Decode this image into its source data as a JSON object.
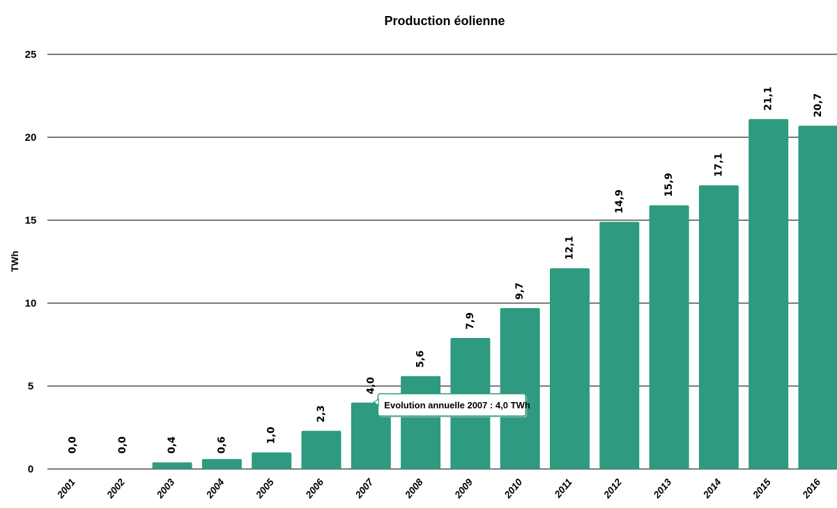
{
  "chart_data": {
    "type": "bar",
    "title": "Production éolienne",
    "xlabel": "",
    "ylabel": "TWh",
    "ylim": [
      0,
      25
    ],
    "yticks": [
      0,
      5,
      10,
      15,
      20,
      25
    ],
    "grid": true,
    "bar_color": "#2e9a80",
    "categories": [
      "2001",
      "2002",
      "2003",
      "2004",
      "2005",
      "2006",
      "2007",
      "2008",
      "2009",
      "2010",
      "2011",
      "2012",
      "2013",
      "2014",
      "2015",
      "2016"
    ],
    "values": [
      0.0,
      0.0,
      0.4,
      0.6,
      1.0,
      2.3,
      4.0,
      5.6,
      7.9,
      9.7,
      12.1,
      14.9,
      15.9,
      17.1,
      21.1,
      20.7
    ],
    "value_labels": [
      "0,0",
      "0,0",
      "0,4",
      "0,6",
      "1,0",
      "2,3",
      "4,0",
      "5,6",
      "7,9",
      "9,7",
      "12,1",
      "14,9",
      "15,9",
      "17,1",
      "21,1",
      "20,7"
    ],
    "tooltip": {
      "category_index": 6,
      "text": "Evolution annuelle 2007 : 4,0 TWh"
    }
  }
}
